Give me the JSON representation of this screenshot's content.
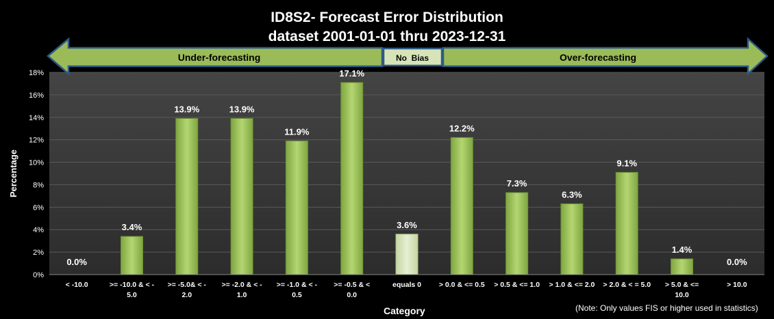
{
  "title_line1": "ID8S2- Forecast Error Distribution",
  "title_line2": "dataset 2001-01-01  thru 2023-12-31",
  "banner": {
    "left_label": "Under-forecasting",
    "center_label": "No  Bias",
    "right_label": "Over-forecasting"
  },
  "note": "(Note: Only values FIS or higher used in statistics)",
  "colors": {
    "background": "#000000",
    "plot_area": "#3a3a3a",
    "bar": "#9bc45a",
    "bar_highlight": "#d6e4b8",
    "arrow_fill": "#9bbb59",
    "arrow_stroke": "#2e5a87"
  },
  "chart_data": {
    "type": "bar",
    "title": "ID8S2- Forecast Error Distribution dataset 2001-01-01 thru 2023-12-31",
    "xlabel": "Category",
    "ylabel": "Percentage",
    "ylim": [
      0,
      18
    ],
    "yticks": [
      "0%",
      "2%",
      "4%",
      "6%",
      "8%",
      "10%",
      "12%",
      "14%",
      "16%",
      "18%"
    ],
    "grid": true,
    "categories": [
      [
        "< -10.0"
      ],
      [
        ">= -10.0 & < -",
        "5.0"
      ],
      [
        ">= -5.0& < -",
        "2.0"
      ],
      [
        ">= -2.0 & < -",
        "1.0"
      ],
      [
        ">= -1.0 & < -",
        "0.5"
      ],
      [
        ">= -0.5 & <",
        "0.0"
      ],
      [
        "equals 0"
      ],
      [
        "> 0.0 & <= 0.5"
      ],
      [
        "> 0.5 & <= 1.0"
      ],
      [
        "> 1.0 & <= 2.0"
      ],
      [
        "> 2.0 & < = 5.0"
      ],
      [
        "> 5.0 & <=",
        "10.0"
      ],
      [
        "> 10.0"
      ]
    ],
    "values": [
      0.0,
      3.4,
      13.9,
      13.9,
      11.9,
      17.1,
      3.6,
      12.2,
      7.3,
      6.3,
      9.1,
      1.4,
      0.0
    ],
    "data_labels": [
      "0.0%",
      "3.4%",
      "13.9%",
      "13.9%",
      "11.9%",
      "17.1%",
      "3.6%",
      "12.2%",
      "7.3%",
      "6.3%",
      "9.1%",
      "1.4%",
      "0.0%"
    ],
    "highlight_index": 6
  }
}
